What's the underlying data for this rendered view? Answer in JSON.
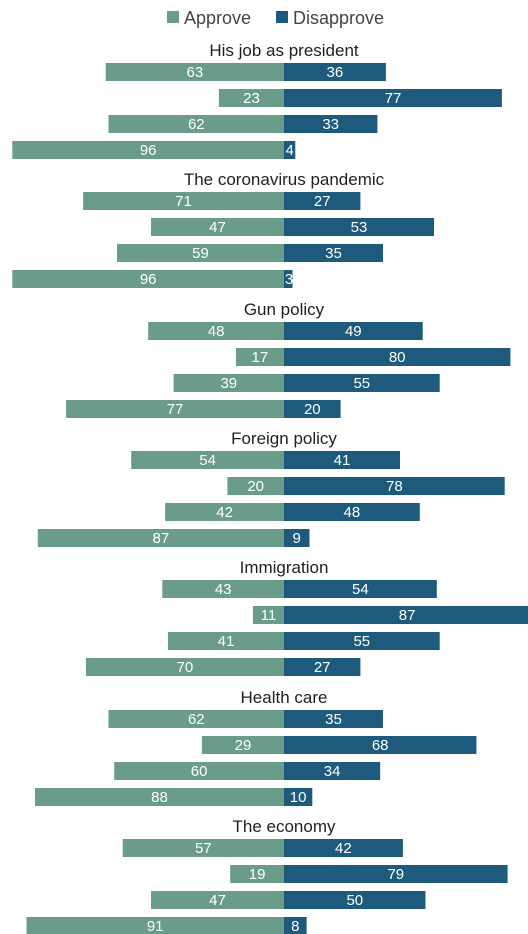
{
  "chart_data": {
    "type": "bar",
    "orientation": "horizontal-diverging",
    "legend": {
      "position": "top-center",
      "items": [
        {
          "name": "Approve",
          "color": "#6a9c89"
        },
        {
          "name": "Disapprove",
          "color": "#1d5a7c"
        }
      ]
    },
    "series": [
      {
        "name": "Approve",
        "color": "#6a9c89"
      },
      {
        "name": "Disapprove",
        "color": "#1d5a7c"
      }
    ],
    "groups": [
      {
        "title": "His job as president",
        "rows": [
          [
            63,
            36
          ],
          [
            23,
            77
          ],
          [
            62,
            33
          ],
          [
            96,
            4
          ]
        ]
      },
      {
        "title": "The coronavirus pandemic",
        "rows": [
          [
            71,
            27
          ],
          [
            47,
            53
          ],
          [
            59,
            35
          ],
          [
            96,
            3
          ]
        ]
      },
      {
        "title": "Gun policy",
        "rows": [
          [
            48,
            49
          ],
          [
            17,
            80
          ],
          [
            39,
            55
          ],
          [
            77,
            20
          ]
        ]
      },
      {
        "title": "Foreign policy",
        "rows": [
          [
            54,
            41
          ],
          [
            20,
            78
          ],
          [
            42,
            48
          ],
          [
            87,
            9
          ]
        ]
      },
      {
        "title": "Immigration",
        "rows": [
          [
            43,
            54
          ],
          [
            11,
            87
          ],
          [
            41,
            55
          ],
          [
            70,
            27
          ]
        ]
      },
      {
        "title": "Health care",
        "rows": [
          [
            62,
            35
          ],
          [
            29,
            68
          ],
          [
            60,
            34
          ],
          [
            88,
            10
          ]
        ]
      },
      {
        "title": "The economy",
        "rows": [
          [
            57,
            42
          ],
          [
            19,
            79
          ],
          [
            47,
            50
          ],
          [
            91,
            8
          ]
        ]
      }
    ]
  }
}
